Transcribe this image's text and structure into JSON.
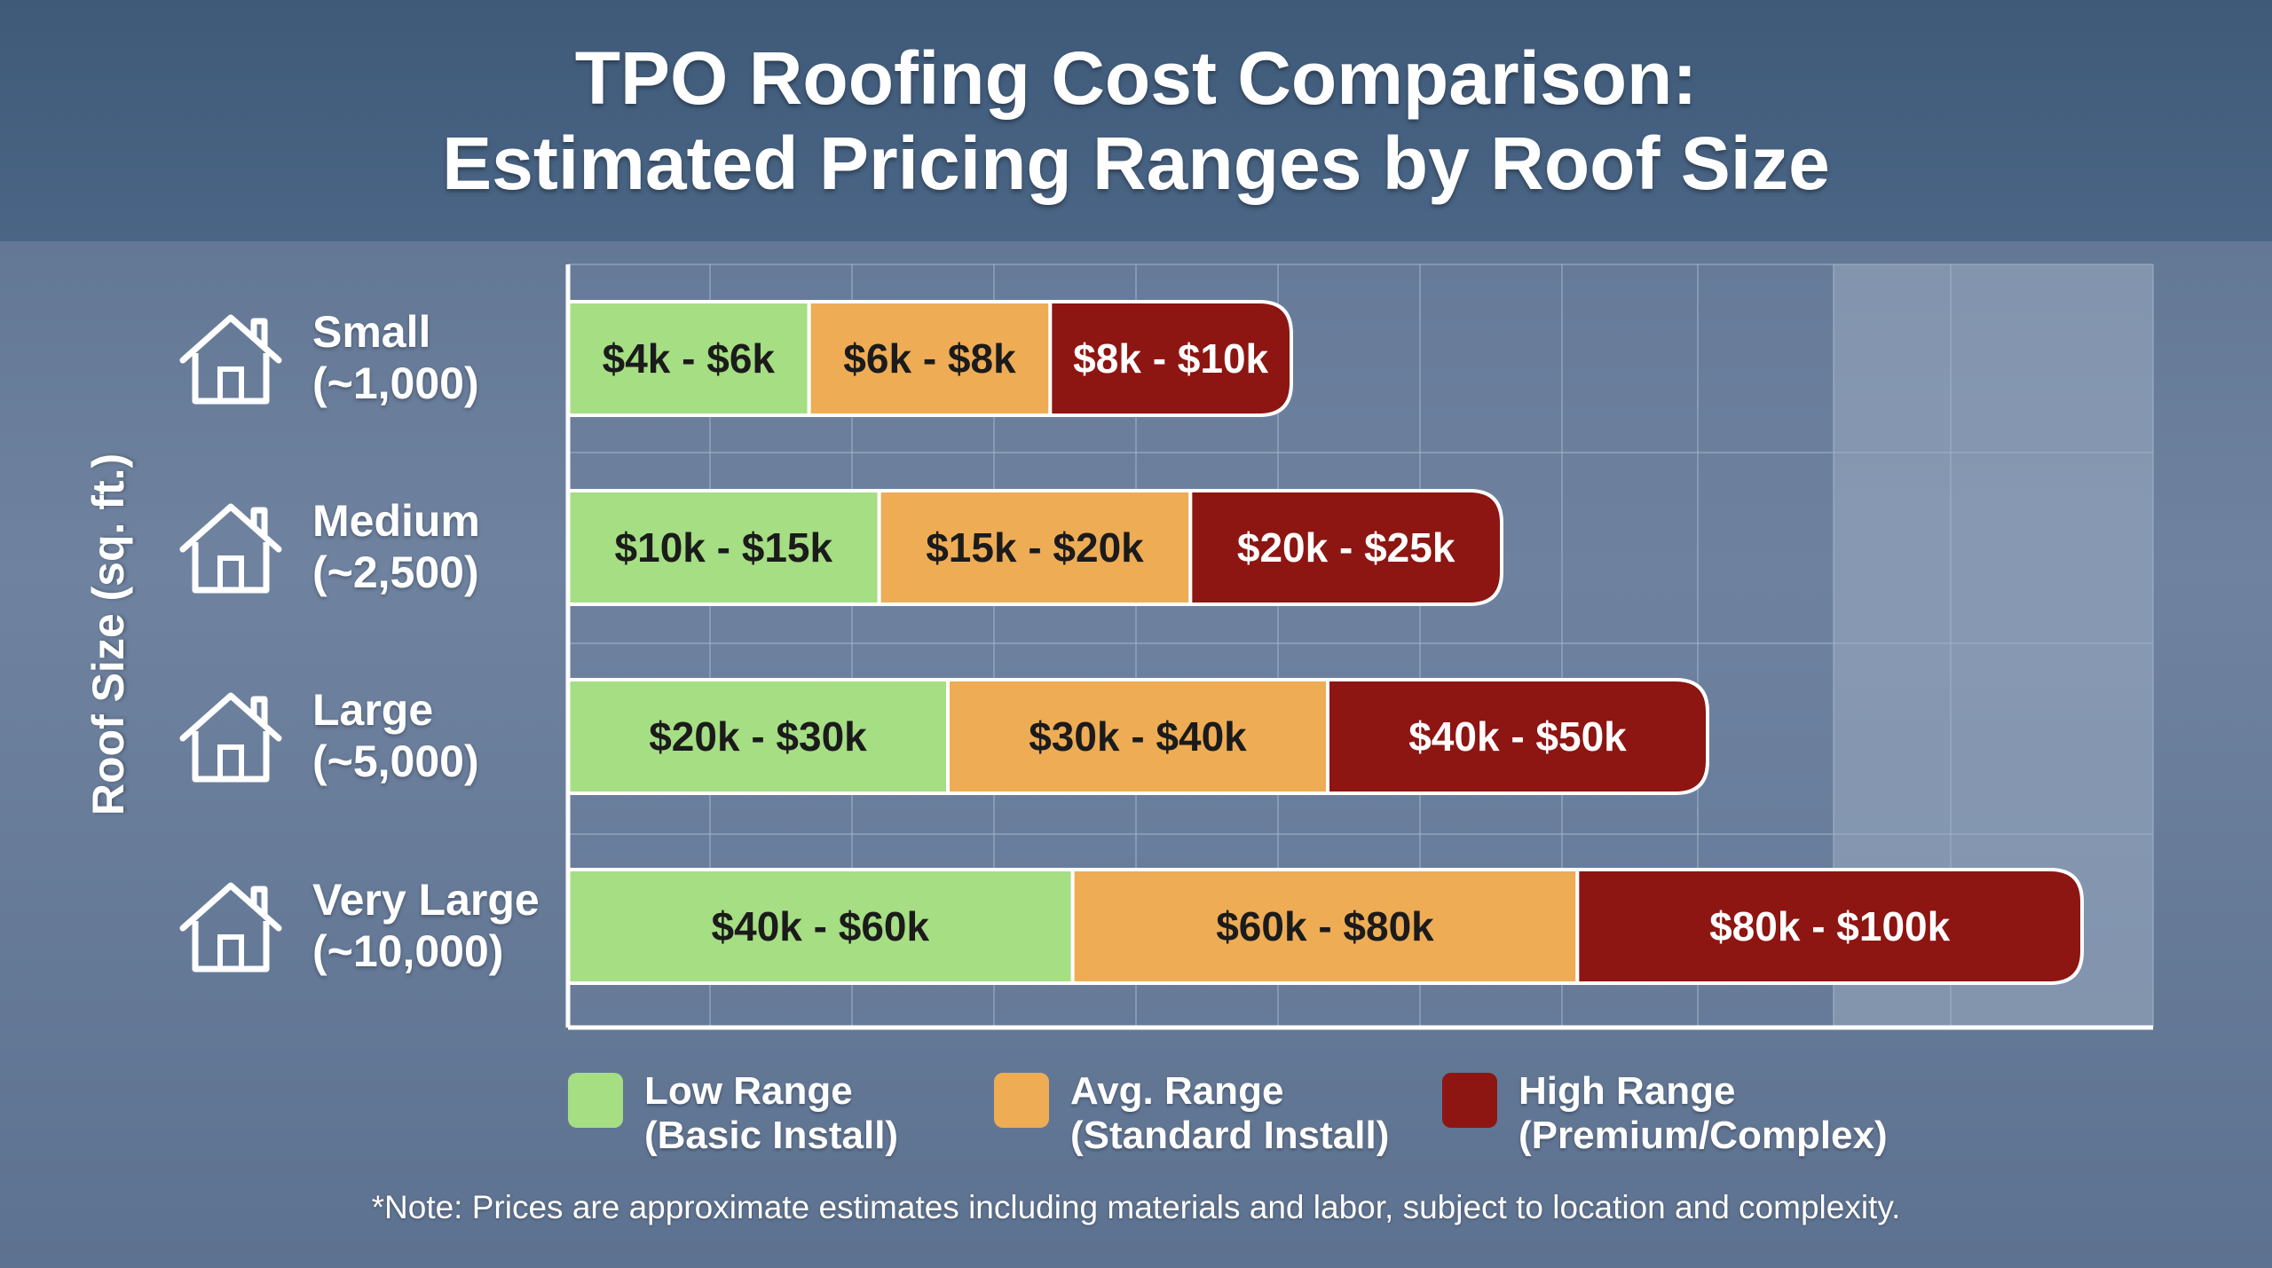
{
  "chart_data": {
    "type": "bar",
    "orientation": "horizontal",
    "stacked": true,
    "title": "TPO Roofing Cost Comparison:",
    "subtitle": "Estimated Pricing Ranges by Roof Size",
    "ylabel": "Roof Size (sq. ft.)",
    "xlabel": "",
    "grid": true,
    "legend_position": "bottom",
    "categories": [
      {
        "name": "Small",
        "size": "(~1,000)"
      },
      {
        "name": "Medium",
        "size": "(~2,500)"
      },
      {
        "name": "Large",
        "size": "(~5,000)"
      },
      {
        "name": "Very Large",
        "size": "(~10,000)"
      }
    ],
    "series": [
      {
        "name": "Low Range",
        "detail": "(Basic Install)",
        "color": "#a5de83",
        "labels": [
          "$4k - $6k",
          "$10k - $15k",
          "$20k - $30k",
          "$40k - $60k"
        ],
        "values": [
          [
            4,
            6
          ],
          [
            10,
            15
          ],
          [
            20,
            30
          ],
          [
            40,
            60
          ]
        ]
      },
      {
        "name": "Avg. Range",
        "detail": "(Standard Install)",
        "color": "#eeac55",
        "labels": [
          "$6k - $8k",
          "$15k - $20k",
          "$30k - $40k",
          "$60k - $80k"
        ],
        "values": [
          [
            6,
            8
          ],
          [
            15,
            20
          ],
          [
            30,
            40
          ],
          [
            60,
            80
          ]
        ]
      },
      {
        "name": "High Range",
        "detail": "(Premium/Complex)",
        "color": "#8d1512",
        "labels": [
          "$8k - $10k",
          "$20k - $25k",
          "$40k - $50k",
          "$80k - $100k"
        ],
        "values": [
          [
            8,
            10
          ],
          [
            20,
            25
          ],
          [
            40,
            50
          ],
          [
            80,
            100
          ]
        ]
      }
    ],
    "note": "*Note: Prices are approximate estimates including materials and labor, subject to location and complexity."
  },
  "icons": {
    "row_icon": "house-icon"
  }
}
